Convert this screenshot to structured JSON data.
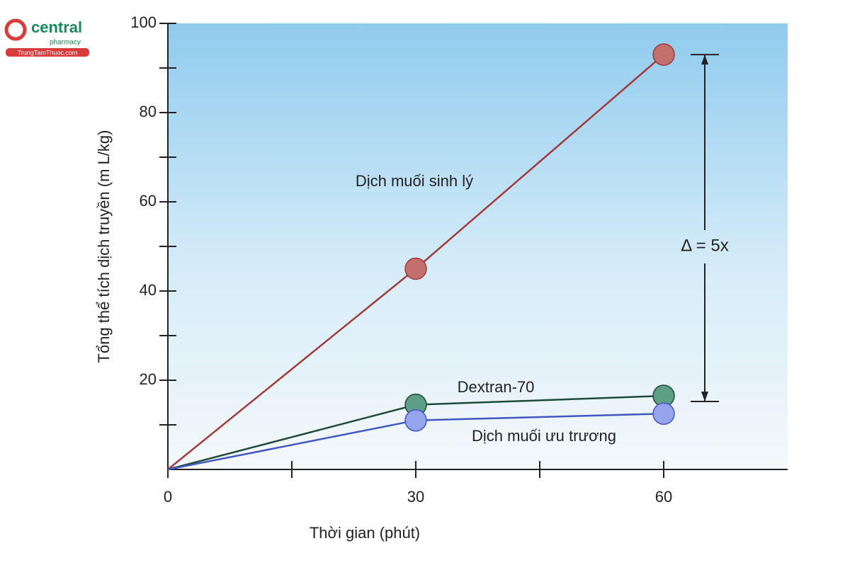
{
  "logo": {
    "name": "central",
    "sub": "pharmacy",
    "site": "TrungTamThuoc.com"
  },
  "chart_data": {
    "type": "line",
    "x_label": "Thời gian (phút)",
    "y_label": "Tổng thể tích dịch truyền (m L/kg)",
    "x": [
      0,
      30,
      60
    ],
    "xlim": [
      0,
      75
    ],
    "xticks": [
      0,
      30,
      60
    ],
    "ylim": [
      0,
      100
    ],
    "yticks": [
      20,
      40,
      60,
      80,
      100
    ],
    "series": [
      {
        "name": "Dịch muối sinh lý",
        "color": "#a23a3a",
        "marker_color": "#c2706e",
        "values": [
          0,
          45,
          93
        ]
      },
      {
        "name": "Dextran-70",
        "color": "#1f4a38",
        "marker_color": "#5f9e86",
        "values": [
          0,
          14.5,
          16.5
        ]
      },
      {
        "name": "Dịch muối ưu trương",
        "color": "#4256c0",
        "marker_color": "#95a4ec",
        "values": [
          0,
          11,
          12.5
        ]
      }
    ],
    "annotation": "Δ = 5x"
  }
}
